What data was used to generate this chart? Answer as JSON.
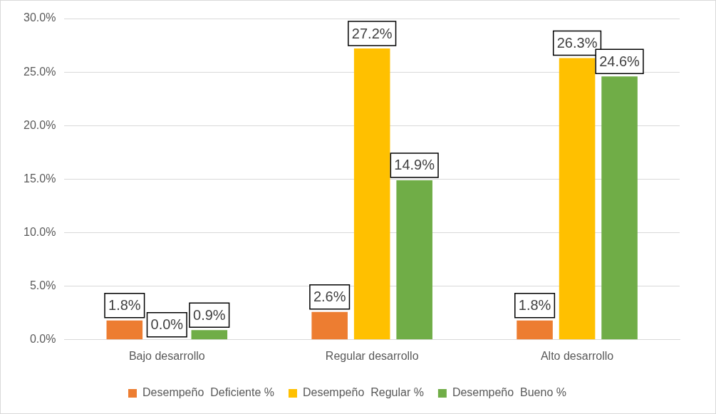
{
  "chart_data": {
    "type": "bar",
    "categories": [
      "Bajo desarrollo",
      "Regular desarrollo",
      "Alto desarrollo"
    ],
    "series": [
      {
        "name": "Desempeño  Deficiente %",
        "color": "#ed7d31",
        "values": [
          1.8,
          2.6,
          1.8
        ],
        "value_labels": [
          "1.8%",
          "2.6%",
          "1.8%"
        ]
      },
      {
        "name": "Desempeño  Regular %",
        "color": "#ffc000",
        "values": [
          0.0,
          27.2,
          26.3
        ],
        "value_labels": [
          "0.0%",
          "27.2%",
          "26.3%"
        ]
      },
      {
        "name": "Desempeño  Bueno %",
        "color": "#70ad47",
        "values": [
          0.9,
          14.9,
          24.6
        ],
        "value_labels": [
          "0.9%",
          "14.9%",
          "24.6%"
        ]
      }
    ],
    "ylim": [
      0,
      30
    ],
    "yticks": [
      {
        "value": 0,
        "label": "0.0%"
      },
      {
        "value": 5,
        "label": "5.0%"
      },
      {
        "value": 10,
        "label": "10.0%"
      },
      {
        "value": 15,
        "label": "15.0%"
      },
      {
        "value": 20,
        "label": "20.0%"
      },
      {
        "value": 25,
        "label": "25.0%"
      },
      {
        "value": 30,
        "label": "30.0%"
      }
    ],
    "grid": "y",
    "legend": "bottom"
  }
}
